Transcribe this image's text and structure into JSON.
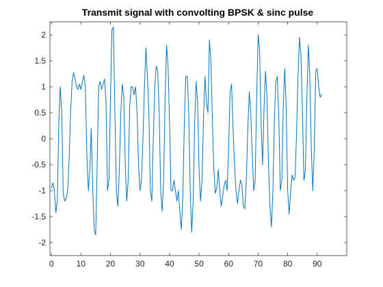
{
  "chart_data": {
    "type": "line",
    "title": "Transmit signal with convolting BPSK & sinc pulse",
    "xlabel": "",
    "ylabel": "",
    "xlim": [
      -0.5,
      100
    ],
    "ylim": [
      -2.25,
      2.25
    ],
    "x_ticks": [
      0,
      10,
      20,
      30,
      40,
      50,
      60,
      70,
      80,
      90
    ],
    "y_ticks": [
      2,
      1.5,
      1,
      0.5,
      0,
      -0.5,
      -1,
      -1.5,
      -2
    ],
    "grid": false,
    "line_color": "#0072BD",
    "series": [
      {
        "points": [
          [
            0,
            -0.95
          ],
          [
            0.5,
            -0.85
          ],
          [
            1,
            -1.0
          ],
          [
            1.5,
            -1.42
          ],
          [
            2,
            -1.2
          ],
          [
            2.5,
            0.3
          ],
          [
            3,
            1.0
          ],
          [
            3.5,
            0.5
          ],
          [
            4,
            -1.05
          ],
          [
            4.5,
            -1.2
          ],
          [
            5,
            -1.15
          ],
          [
            5.5,
            -1.0
          ],
          [
            6,
            -0.4
          ],
          [
            6.5,
            0.5
          ],
          [
            7,
            1.1
          ],
          [
            7.5,
            1.27
          ],
          [
            8,
            1.15
          ],
          [
            8.5,
            1.0
          ],
          [
            9,
            0.95
          ],
          [
            9.5,
            1.05
          ],
          [
            10,
            0.95
          ],
          [
            10.5,
            1.1
          ],
          [
            11,
            1.22
          ],
          [
            11.5,
            1.0
          ],
          [
            12,
            -0.3
          ],
          [
            12.5,
            -1.0
          ],
          [
            13,
            -0.6
          ],
          [
            13.5,
            0.2
          ],
          [
            14,
            -1.0
          ],
          [
            14.5,
            -1.75
          ],
          [
            15,
            -1.85
          ],
          [
            15.5,
            -0.5
          ],
          [
            16,
            1.0
          ],
          [
            16.5,
            1.1
          ],
          [
            17,
            0.95
          ],
          [
            17.5,
            1.05
          ],
          [
            18,
            1.15
          ],
          [
            18.5,
            0.7
          ],
          [
            19,
            -1.0
          ],
          [
            19.5,
            -0.8
          ],
          [
            20,
            0.8
          ],
          [
            20.5,
            2.1
          ],
          [
            21,
            2.15
          ],
          [
            21.5,
            0.5
          ],
          [
            22,
            -1.0
          ],
          [
            22.5,
            -1.3
          ],
          [
            23,
            -0.6
          ],
          [
            23.5,
            0.5
          ],
          [
            24,
            1.05
          ],
          [
            24.5,
            0.8
          ],
          [
            25,
            -0.5
          ],
          [
            25.5,
            -1.2
          ],
          [
            26,
            -0.8
          ],
          [
            26.5,
            0.6
          ],
          [
            27,
            1.0
          ],
          [
            27.5,
            1.0
          ],
          [
            28,
            0.85
          ],
          [
            28.5,
            1.0
          ],
          [
            29,
            0.5
          ],
          [
            29.5,
            -0.5
          ],
          [
            30,
            -1.0
          ],
          [
            30.5,
            -0.8
          ],
          [
            31,
            0.0
          ],
          [
            31.5,
            1.0
          ],
          [
            32,
            1.75
          ],
          [
            32.5,
            1.2
          ],
          [
            33,
            0.5
          ],
          [
            33.5,
            -1.0
          ],
          [
            34,
            -1.2
          ],
          [
            34.5,
            0.0
          ],
          [
            35,
            1.0
          ],
          [
            35.5,
            1.4
          ],
          [
            36,
            1.3
          ],
          [
            36.5,
            0.5
          ],
          [
            37,
            -1.0
          ],
          [
            37.5,
            -1.4
          ],
          [
            38,
            -0.8
          ],
          [
            38.5,
            0.8
          ],
          [
            39,
            1.8
          ],
          [
            39.5,
            1.4
          ],
          [
            40,
            0.3
          ],
          [
            40.5,
            -1.0
          ],
          [
            41,
            -1.0
          ],
          [
            41.5,
            -0.8
          ],
          [
            42,
            -1.0
          ],
          [
            42.5,
            -1.2
          ],
          [
            43,
            -1.0
          ],
          [
            43.5,
            -1.4
          ],
          [
            44,
            -1.75
          ],
          [
            44.5,
            -1.1
          ],
          [
            45,
            0.3
          ],
          [
            45.5,
            1.2
          ],
          [
            46,
            1.2
          ],
          [
            46.5,
            0.5
          ],
          [
            47,
            -1.0
          ],
          [
            47.5,
            -1.8
          ],
          [
            48,
            -1.2
          ],
          [
            48.5,
            0.3
          ],
          [
            49,
            1.1
          ],
          [
            49.5,
            0.7
          ],
          [
            50,
            -0.6
          ],
          [
            50.5,
            -1.2
          ],
          [
            51,
            -0.8
          ],
          [
            51.5,
            0.4
          ],
          [
            52,
            1.2
          ],
          [
            52.5,
            0.7
          ],
          [
            53,
            0.5
          ],
          [
            53.5,
            1.9
          ],
          [
            54,
            1.5
          ],
          [
            54.5,
            0.4
          ],
          [
            55,
            -0.6
          ],
          [
            55.5,
            -1.05
          ],
          [
            56,
            -0.95
          ],
          [
            56.5,
            -0.6
          ],
          [
            57,
            -1.0
          ],
          [
            57.5,
            -1.3
          ],
          [
            58,
            -1.1
          ],
          [
            58.5,
            -0.9
          ],
          [
            59,
            -0.8
          ],
          [
            59.5,
            -1.0
          ],
          [
            60,
            -0.2
          ],
          [
            60.5,
            0.9
          ],
          [
            61,
            1.05
          ],
          [
            61.5,
            0.2
          ],
          [
            62,
            -0.5
          ],
          [
            62.5,
            -1.0
          ],
          [
            63,
            -1.25
          ],
          [
            63.5,
            -1.0
          ],
          [
            64,
            -0.8
          ],
          [
            64.5,
            -0.9
          ],
          [
            65,
            -1.3
          ],
          [
            65.5,
            -1.35
          ],
          [
            66,
            -0.8
          ],
          [
            66.5,
            0.2
          ],
          [
            67,
            0.9
          ],
          [
            67.5,
            0.5
          ],
          [
            68,
            -0.3
          ],
          [
            68.5,
            -1.0
          ],
          [
            69,
            -0.8
          ],
          [
            69.5,
            0.8
          ],
          [
            70,
            2.0
          ],
          [
            70.5,
            1.7
          ],
          [
            71,
            0.3
          ],
          [
            71.5,
            -0.5
          ],
          [
            72,
            0.6
          ],
          [
            72.5,
            1.3
          ],
          [
            73,
            0.8
          ],
          [
            73.5,
            -0.5
          ],
          [
            74,
            -1.3
          ],
          [
            74.5,
            -1.7
          ],
          [
            75,
            -1.0
          ],
          [
            75.5,
            0.4
          ],
          [
            76,
            1.1
          ],
          [
            76.5,
            1.2
          ],
          [
            77,
            0.4
          ],
          [
            77.5,
            -1.0
          ],
          [
            78,
            -0.8
          ],
          [
            78.5,
            0.6
          ],
          [
            79,
            1.35
          ],
          [
            79.5,
            0.6
          ],
          [
            80,
            -1.0
          ],
          [
            80.5,
            -1.45
          ],
          [
            81,
            -1.0
          ],
          [
            81.5,
            -0.7
          ],
          [
            82,
            -0.8
          ],
          [
            82.5,
            -0.75
          ],
          [
            83,
            0.1
          ],
          [
            83.5,
            1.2
          ],
          [
            84,
            1.95
          ],
          [
            84.5,
            1.6
          ],
          [
            85,
            0.5
          ],
          [
            85.5,
            -0.8
          ],
          [
            86,
            -0.6
          ],
          [
            86.5,
            0.8
          ],
          [
            87,
            1.8
          ],
          [
            87.5,
            1.2
          ],
          [
            88,
            -0.2
          ],
          [
            88.5,
            -1.0
          ],
          [
            89,
            -0.2
          ],
          [
            89.5,
            1.3
          ],
          [
            90,
            1.35
          ],
          [
            90.5,
            1.0
          ],
          [
            91,
            0.8
          ],
          [
            91.5,
            0.85
          ]
        ]
      }
    ]
  }
}
